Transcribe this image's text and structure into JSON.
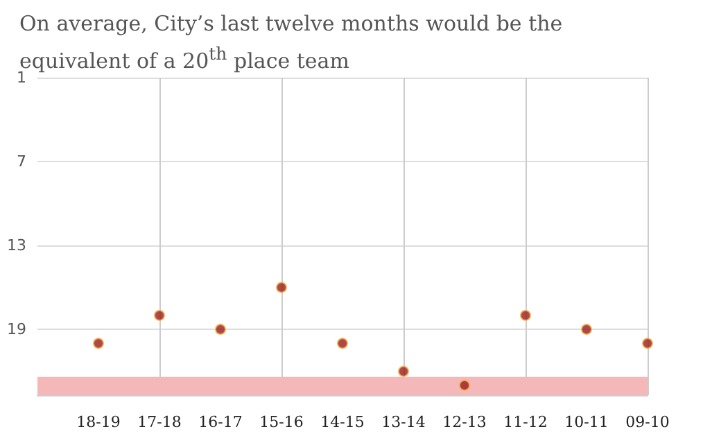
{
  "chart_data": {
    "type": "scatter",
    "title": "On average, City’s last twelve months would be the equivalent of a 20$^{th}$ place team",
    "categories": [
      "18-19",
      "17-18",
      "16-17",
      "15-16",
      "14-15",
      "13-14",
      "12-13",
      "11-12",
      "10-11",
      "09-10"
    ],
    "series": [
      {
        "color": "#9b1c1c",
        "values": [
          20,
          18,
          19,
          16,
          20,
          22,
          23,
          18,
          19,
          20
        ]
      }
    ],
    "ylim": [
      23.7,
      1
    ],
    "yticks": [
      1,
      7,
      13,
      19
    ],
    "grid": true,
    "marker": "circle",
    "bands": [
      {
        "axis": "y",
        "from": 22.4,
        "to": 23.7,
        "color": "#f4b8b8"
      }
    ]
  }
}
